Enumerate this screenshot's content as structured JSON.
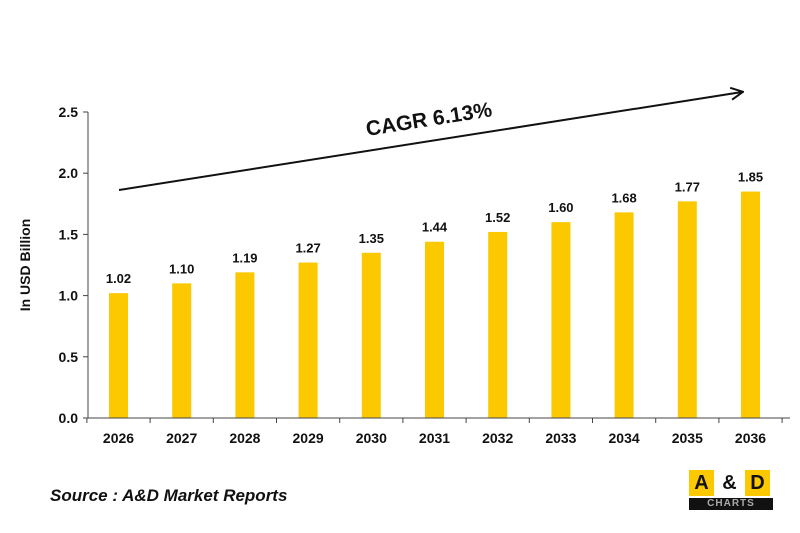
{
  "chart_data": {
    "type": "bar",
    "ylabel": "In USD Billion",
    "ylim": [
      0,
      2.5
    ],
    "yticks": [
      "0.0",
      "0.5",
      "1.0",
      "1.5",
      "2.0",
      "2.5"
    ],
    "categories": [
      "2026",
      "2027",
      "2028",
      "2029",
      "2030",
      "2031",
      "2032",
      "2033",
      "2034",
      "2035",
      "2036"
    ],
    "values": [
      1.02,
      1.1,
      1.19,
      1.27,
      1.35,
      1.44,
      1.52,
      1.6,
      1.68,
      1.77,
      1.85
    ],
    "value_labels": [
      "1.02",
      "1.10",
      "1.19",
      "1.27",
      "1.35",
      "1.44",
      "1.52",
      "1.60",
      "1.68",
      "1.77",
      "1.85"
    ],
    "bar_color": "#fcc800",
    "grid": false,
    "annotation": "CAGR 6.13%"
  },
  "source": "Source : A&D Market Reports",
  "logo": {
    "letters": [
      "A",
      "&",
      "D"
    ],
    "sub": "CHARTS",
    "colors": {
      "box": "#fcc800",
      "sub_bg": "#111111"
    }
  }
}
